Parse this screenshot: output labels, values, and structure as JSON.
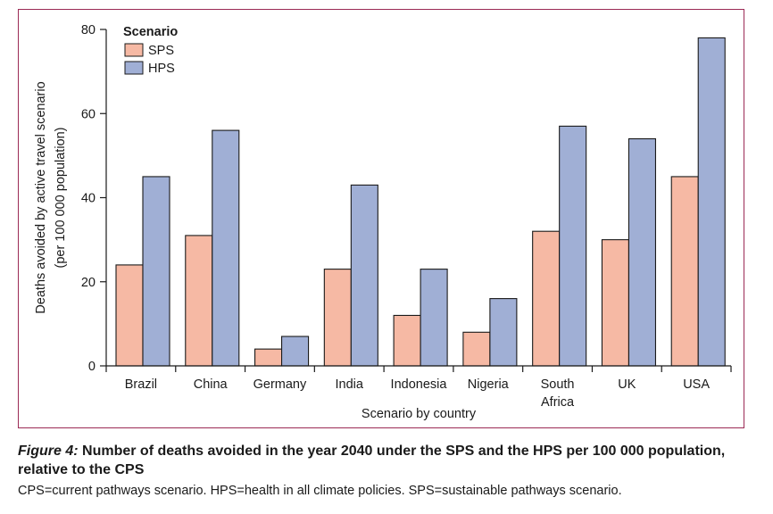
{
  "chart_data": {
    "type": "bar",
    "title": "",
    "xlabel": "Scenario by country",
    "ylabel": [
      "Deaths avoided by active travel scenario",
      "(per 100 000 population)"
    ],
    "ylim": [
      0,
      80
    ],
    "yticks": [
      0,
      20,
      40,
      60,
      80
    ],
    "grid": false,
    "legend": {
      "title": "Scenario",
      "placement": "top-left"
    },
    "categories": [
      "Brazil",
      "China",
      "Germany",
      "India",
      "Indonesia",
      "Nigeria",
      "South Africa",
      "UK",
      "USA"
    ],
    "category_lines": [
      [
        "Brazil"
      ],
      [
        "China"
      ],
      [
        "Germany"
      ],
      [
        "India"
      ],
      [
        "Indonesia"
      ],
      [
        "Nigeria"
      ],
      [
        "South",
        "Africa"
      ],
      [
        "UK"
      ],
      [
        "USA"
      ]
    ],
    "series": [
      {
        "name": "SPS",
        "color": "#f6b9a4",
        "values": [
          24,
          31,
          4,
          23,
          12,
          8,
          32,
          30,
          45
        ]
      },
      {
        "name": "HPS",
        "color": "#a0afd5",
        "values": [
          45,
          56,
          7,
          43,
          23,
          16,
          57,
          54,
          78
        ]
      }
    ]
  },
  "caption": {
    "label": "Figure 4:",
    "title": "Number of deaths avoided in the year 2040 under the SPS and the HPS per 100 000 population, relative to the CPS",
    "note": "CPS=current pathways scenario. HPS=health in all climate policies. SPS=sustainable pathways scenario."
  },
  "colors": {
    "frame": "#9b2a55",
    "axis": "#1a1a1a",
    "bar_outline": "#1a1a1a"
  }
}
